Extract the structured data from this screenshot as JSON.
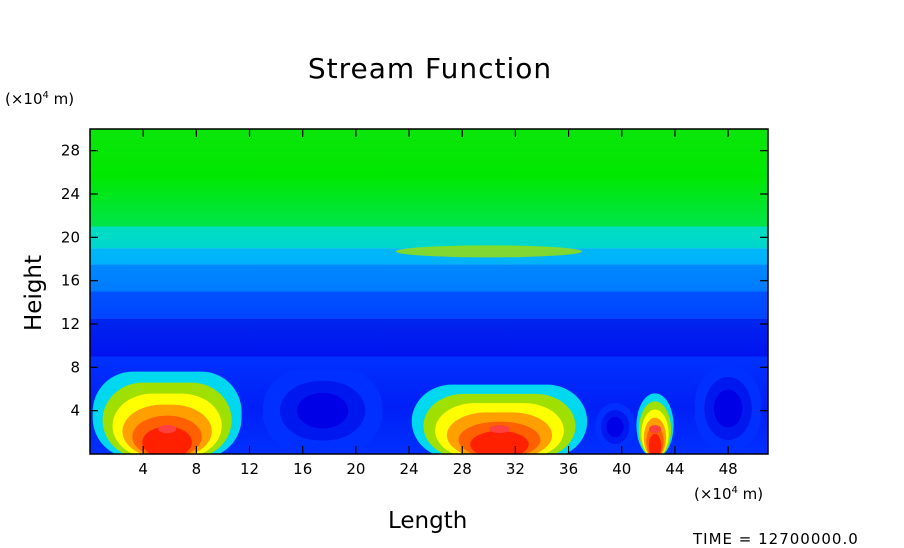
{
  "chart_data": {
    "type": "heatmap",
    "title": "Stream Function",
    "xlabel": "Length",
    "ylabel": "Height",
    "x_unit_prefix": "(×10",
    "x_unit_exp": "4",
    "x_unit_suffix": " m)",
    "y_unit_prefix": "(×10",
    "y_unit_exp": "4",
    "y_unit_suffix": " m)",
    "time_label": "TIME = 12700000.0",
    "xlim": [
      0,
      51
    ],
    "ylim": [
      0,
      30
    ],
    "x_ticks": [
      4,
      8,
      12,
      16,
      20,
      24,
      28,
      32,
      36,
      40,
      44,
      48
    ],
    "y_ticks": [
      4,
      8,
      12,
      16,
      20,
      24,
      28
    ],
    "grid": false,
    "colorscale": [
      "#0000e6",
      "#0030ff",
      "#0070ff",
      "#00a8ff",
      "#00d8f0",
      "#00e8b0",
      "#00e060",
      "#20e000",
      "#60e000",
      "#a0e000",
      "#ffff00",
      "#ffd000",
      "#ffa000",
      "#ff6000",
      "#ff2000",
      "#ff4040"
    ],
    "background_field": [
      {
        "y": [
          0,
          9
        ],
        "color": "#0030ff"
      },
      {
        "y": [
          9,
          12.5
        ],
        "color": "#0000e6"
      },
      {
        "y": [
          12.5,
          15
        ],
        "color": "#0030ff"
      },
      {
        "y": [
          15,
          17.5
        ],
        "color": "#0070ff"
      },
      {
        "y": [
          17.5,
          19
        ],
        "color": "#00b0ff"
      },
      {
        "y": [
          19,
          21
        ],
        "color": "#00e0c0"
      },
      {
        "y": [
          21,
          30
        ],
        "color": "#00e800"
      }
    ],
    "cells": [
      {
        "name": "left-positive-cell",
        "center": [
          5.8,
          2.3
        ],
        "halfwidth": 5.6,
        "top": 7.6,
        "polarity": "positive"
      },
      {
        "name": "middle-positive-cell",
        "center": [
          30.8,
          2.3
        ],
        "halfwidth": 6.6,
        "top": 6.4,
        "polarity": "positive"
      },
      {
        "name": "small-positive-cell",
        "center": [
          42.5,
          2.3
        ],
        "halfwidth": 1.4,
        "top": 5.6,
        "polarity": "positive"
      },
      {
        "name": "negative-cell-1",
        "center": [
          17.5,
          4.0
        ],
        "halfwidth": 4.5,
        "top": 7.0,
        "polarity": "negative"
      },
      {
        "name": "negative-cell-2",
        "center": [
          39.5,
          2.5
        ],
        "halfwidth": 1.5,
        "top": 4.0,
        "polarity": "negative"
      },
      {
        "name": "negative-cell-3",
        "center": [
          48.0,
          4.2
        ],
        "halfwidth": 2.5,
        "top": 7.4,
        "polarity": "negative"
      }
    ]
  }
}
